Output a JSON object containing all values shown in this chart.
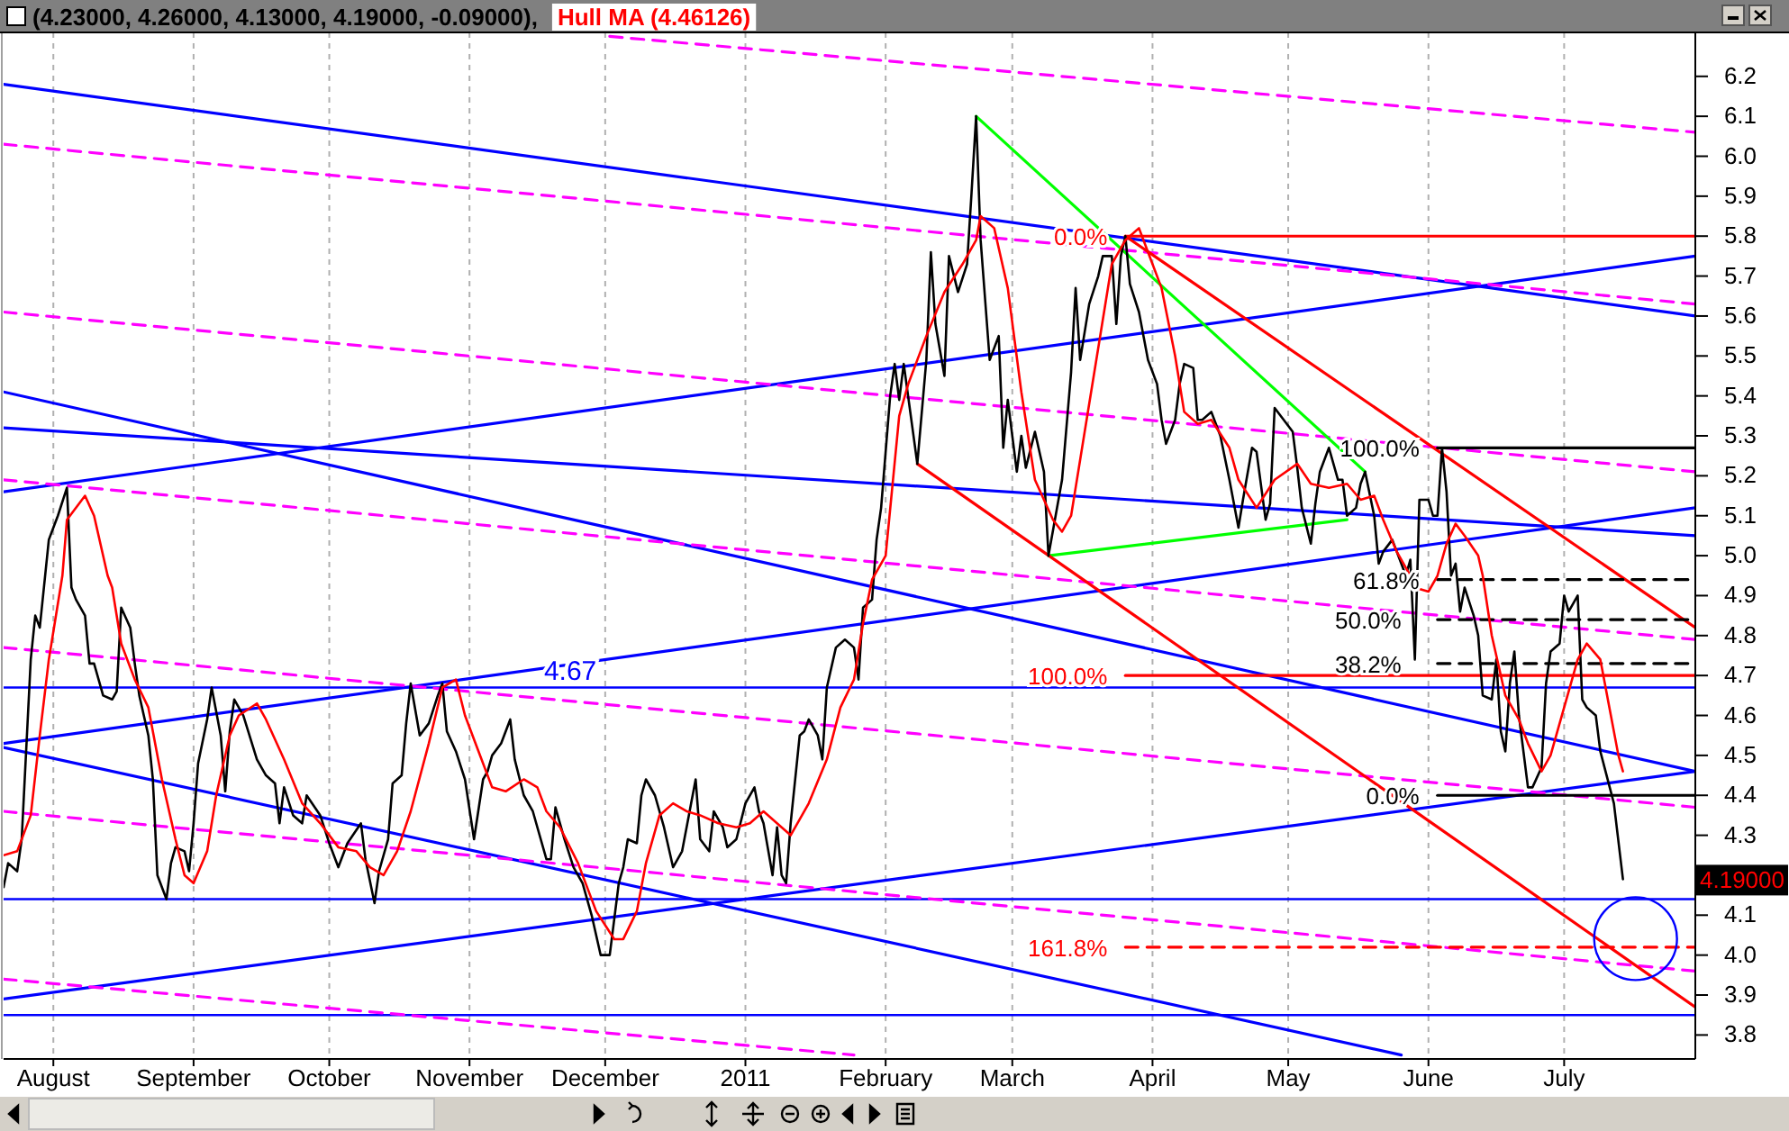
{
  "chart_data": {
    "type": "line",
    "title": "(4.23000, 4.26000, 4.13000, 4.19000, -0.09000),",
    "xlim": [
      "2010-07-21",
      "2011-07-30"
    ],
    "xticks": [
      {
        "value": "2010-08-01",
        "label": "August"
      },
      {
        "value": "2010-09-01",
        "label": "September"
      },
      {
        "value": "2010-10-01",
        "label": "October"
      },
      {
        "value": "2010-11-01",
        "label": "November"
      },
      {
        "value": "2010-12-01",
        "label": "December"
      },
      {
        "value": "2011-01-01",
        "label": "2011"
      },
      {
        "value": "2011-02-01",
        "label": "February"
      },
      {
        "value": "2011-03-01",
        "label": "March"
      },
      {
        "value": "2011-04-01",
        "label": "April"
      },
      {
        "value": "2011-05-01",
        "label": "May"
      },
      {
        "value": "2011-06-01",
        "label": "June"
      },
      {
        "value": "2011-07-01",
        "label": "July"
      }
    ],
    "ylim": [
      3.74,
      6.31
    ],
    "yticks": [
      3.8,
      3.9,
      {
        "value": 4,
        "label": "4.0"
      },
      4.1,
      {
        "value": 4.2,
        "label": null
      },
      4.3,
      4.4,
      4.5,
      4.6,
      4.7,
      4.8,
      4.9,
      {
        "value": 5,
        "label": "5.0"
      },
      5.1,
      5.2,
      5.3,
      5.4,
      5.5,
      5.6,
      5.7,
      5.8,
      5.9,
      {
        "value": 6,
        "label": "6.0"
      },
      6.1,
      6.2
    ],
    "grid": "x",
    "legend": "top left",
    "series": [
      {
        "color": "#0000ff",
        "x": [
          "2010-07-21",
          "2011-07-30"
        ],
        "values": [
          6.18,
          5.6
        ]
      },
      {
        "color": "#0000ff",
        "x": [
          "2010-07-21",
          "2011-07-30"
        ],
        "values": [
          5.16,
          5.75
        ]
      },
      {
        "color": "#0000ff",
        "x": [
          "2010-07-21",
          "2011-07-30"
        ],
        "values": [
          5.32,
          5.05
        ]
      },
      {
        "color": "#0000ff",
        "x": [
          "2010-07-21",
          "2011-07-30"
        ],
        "values": [
          5.41,
          4.46
        ]
      },
      {
        "color": "#0000ff",
        "x": [
          "2010-07-21",
          "2011-07-30"
        ],
        "values": [
          4.53,
          5.12
        ]
      },
      {
        "color": "#0000ff",
        "x": [
          "2010-07-21",
          "2011-05-26"
        ],
        "values": [
          4.52,
          3.75
        ]
      },
      {
        "color": "#0000ff",
        "x": [
          "2010-07-21",
          "2011-07-30"
        ],
        "values": [
          3.89,
          4.46
        ]
      },
      {
        "color": "#ff00ff",
        "line_style": "dashed",
        "x": [
          "2010-12-02",
          "2011-07-30"
        ],
        "values": [
          6.3,
          6.06
        ]
      },
      {
        "color": "#ff00ff",
        "line_style": "dashed",
        "x": [
          "2010-07-21",
          "2011-07-30"
        ],
        "values": [
          6.03,
          5.63
        ]
      },
      {
        "color": "#ff00ff",
        "line_style": "dashed",
        "x": [
          "2010-07-21",
          "2011-07-30"
        ],
        "values": [
          5.61,
          5.21
        ]
      },
      {
        "color": "#ff00ff",
        "line_style": "dashed",
        "x": [
          "2010-07-21",
          "2011-07-30"
        ],
        "values": [
          5.19,
          4.79
        ]
      },
      {
        "color": "#ff00ff",
        "line_style": "dashed",
        "x": [
          "2010-07-21",
          "2011-07-30"
        ],
        "values": [
          4.77,
          4.37
        ]
      },
      {
        "color": "#ff00ff",
        "line_style": "dashed",
        "x": [
          "2010-07-21",
          "2011-07-30"
        ],
        "values": [
          4.36,
          3.96
        ]
      },
      {
        "color": "#ff00ff",
        "line_style": "dashed",
        "x": [
          "2010-07-21",
          "2011-01-25"
        ],
        "values": [
          3.94,
          3.75
        ]
      },
      {
        "color": "#00ff00",
        "x": [
          "2011-02-21",
          "2011-05-18"
        ],
        "values": [
          6.1,
          5.21
        ]
      },
      {
        "color": "#00ff00",
        "x": [
          "2011-03-09",
          "2011-05-14"
        ],
        "values": [
          5.0,
          5.09
        ]
      },
      {
        "color": "#ff0000",
        "x": [
          "2011-03-26",
          "2011-07-30"
        ],
        "values": [
          5.8,
          4.82
        ]
      },
      {
        "color": "#ff0000",
        "x": [
          "2011-02-08",
          "2011-07-30"
        ],
        "values": [
          5.23,
          3.87
        ]
      },
      {
        "color": "#ff0000",
        "x": [
          "2011-03-26",
          "2011-07-30"
        ],
        "values": [
          5.8,
          5.8
        ]
      },
      {
        "color": "#ff0000",
        "x": [
          "2011-03-26",
          "2011-07-30"
        ],
        "values": [
          4.7,
          4.7
        ]
      },
      {
        "color": "#ff0000",
        "line_style": "dashed",
        "x": [
          "2011-03-26",
          "2011-07-30"
        ],
        "values": [
          4.02,
          4.02
        ]
      },
      {
        "color": "#000000",
        "x": [
          "2011-06-03",
          "2011-07-30"
        ],
        "values": [
          5.27,
          5.27
        ]
      },
      {
        "color": "#000000",
        "x": [
          "2011-06-03",
          "2011-07-30"
        ],
        "values": [
          4.4,
          4.4
        ]
      },
      {
        "color": "#000000",
        "line_style": "dashed",
        "x": [
          "2011-06-03",
          "2011-07-30"
        ],
        "values": [
          4.94,
          4.94
        ]
      },
      {
        "color": "#000000",
        "line_style": "dashed",
        "x": [
          "2011-06-03",
          "2011-07-30"
        ],
        "values": [
          4.84,
          4.84
        ]
      },
      {
        "color": "#000000",
        "line_style": "dashed",
        "x": [
          "2011-06-03",
          "2011-07-30"
        ],
        "values": [
          4.73,
          4.73
        ]
      },
      {
        "color": "#000000",
        "x": [
          "2010-07-21",
          "2010-07-22",
          "2010-07-24",
          "2010-07-25",
          "2010-07-27",
          "2010-07-28",
          "2010-07-29",
          "2010-07-31",
          "2010-08-01",
          "2010-08-02",
          "2010-08-04",
          "2010-08-05",
          "2010-08-06",
          "2010-08-08",
          "2010-08-09",
          "2010-08-10",
          "2010-08-12",
          "2010-08-14",
          "2010-08-15",
          "2010-08-16",
          "2010-08-18",
          "2010-08-19",
          "2010-08-20",
          "2010-08-22",
          "2010-08-23",
          "2010-08-24",
          "2010-08-26",
          "2010-08-27",
          "2010-08-28",
          "2010-08-30",
          "2010-08-31",
          "2010-09-01",
          "2010-09-02",
          "2010-09-04",
          "2010-09-05",
          "2010-09-07",
          "2010-09-08",
          "2010-09-09",
          "2010-09-10",
          "2010-09-12",
          "2010-09-15",
          "2010-09-17",
          "2010-09-19",
          "2010-09-20",
          "2010-09-21",
          "2010-09-23",
          "2010-09-25",
          "2010-09-26",
          "2010-09-29",
          "2010-10-01",
          "2010-10-03",
          "2010-10-05",
          "2010-10-08",
          "2010-10-09",
          "2010-10-11",
          "2010-10-12",
          "2010-10-14",
          "2010-10-15",
          "2010-10-17",
          "2010-10-18",
          "2010-10-19",
          "2010-10-21",
          "2010-10-23",
          "2010-10-25",
          "2010-10-26",
          "2010-10-27",
          "2010-10-29",
          "2010-10-31",
          "2010-11-02",
          "2010-11-04",
          "2010-11-05",
          "2010-11-06",
          "2010-11-08",
          "2010-11-10",
          "2010-11-11",
          "2010-11-13",
          "2010-11-15",
          "2010-11-18",
          "2010-11-19",
          "2010-11-20",
          "2010-11-22",
          "2010-11-24",
          "2010-11-26",
          "2010-11-28",
          "2010-11-30",
          "2010-12-02",
          "2010-12-04",
          "2010-12-05",
          "2010-12-06",
          "2010-12-08",
          "2010-12-09",
          "2010-12-10",
          "2010-12-12",
          "2010-12-14",
          "2010-12-16",
          "2010-12-18",
          "2010-12-20",
          "2010-12-21",
          "2010-12-22",
          "2010-12-24",
          "2010-12-25",
          "2010-12-27",
          "2010-12-28",
          "2010-12-30",
          "2011-01-01",
          "2011-01-03",
          "2011-01-04",
          "2011-01-05",
          "2011-01-07",
          "2011-01-08",
          "2011-01-09",
          "2011-01-10",
          "2011-01-11",
          "2011-01-13",
          "2011-01-14",
          "2011-01-15",
          "2011-01-17",
          "2011-01-18",
          "2011-01-19",
          "2011-01-21",
          "2011-01-23",
          "2011-01-25",
          "2011-01-26",
          "2011-01-27",
          "2011-01-29",
          "2011-01-30",
          "2011-01-31",
          "2011-02-02",
          "2011-02-03",
          "2011-02-04",
          "2011-02-05",
          "2011-02-08",
          "2011-02-10",
          "2011-02-11",
          "2011-02-12",
          "2011-02-14",
          "2011-02-15",
          "2011-02-17",
          "2011-02-19",
          "2011-02-20",
          "2011-02-21",
          "2011-02-22",
          "2011-02-24",
          "2011-02-26",
          "2011-02-27",
          "2011-02-28",
          "2011-03-02",
          "2011-03-03",
          "2011-03-04",
          "2011-03-06",
          "2011-03-08",
          "2011-03-09",
          "2011-03-12",
          "2011-03-14",
          "2011-03-15",
          "2011-03-16",
          "2011-03-18",
          "2011-03-20",
          "2011-03-21",
          "2011-03-23",
          "2011-03-24",
          "2011-03-25",
          "2011-03-26",
          "2011-03-27",
          "2011-03-29",
          "2011-03-31",
          "2011-04-02",
          "2011-04-03",
          "2011-04-04",
          "2011-04-06",
          "2011-04-07",
          "2011-04-08",
          "2011-04-10",
          "2011-04-11",
          "2011-04-12",
          "2011-04-14",
          "2011-04-16",
          "2011-04-18",
          "2011-04-20",
          "2011-04-21",
          "2011-04-23",
          "2011-04-24",
          "2011-04-26",
          "2011-04-27",
          "2011-04-28",
          "2011-04-30",
          "2011-05-02",
          "2011-05-03",
          "2011-05-04",
          "2011-05-06",
          "2011-05-07",
          "2011-05-08",
          "2011-05-10",
          "2011-05-12",
          "2011-05-13",
          "2011-05-14",
          "2011-05-16",
          "2011-05-17",
          "2011-05-18",
          "2011-05-20",
          "2011-05-21",
          "2011-05-22",
          "2011-05-24",
          "2011-05-27",
          "2011-05-28",
          "2011-05-29",
          "2011-05-30",
          "2011-06-01",
          "2011-06-02",
          "2011-06-03",
          "2011-06-04",
          "2011-06-05",
          "2011-06-06",
          "2011-06-07",
          "2011-06-08",
          "2011-06-09",
          "2011-06-11",
          "2011-06-12",
          "2011-06-13",
          "2011-06-15",
          "2011-06-16",
          "2011-06-17",
          "2011-06-18",
          "2011-06-19",
          "2011-06-20",
          "2011-06-21",
          "2011-06-23",
          "2011-06-24",
          "2011-06-26",
          "2011-06-27",
          "2011-06-28",
          "2011-06-30",
          "2011-07-01",
          "2011-07-02",
          "2011-07-04",
          "2011-07-05",
          "2011-07-06",
          "2011-07-08",
          "2011-07-09",
          "2011-07-12",
          "2011-07-14"
        ],
        "values": [
          4.17,
          4.23,
          4.21,
          4.29,
          4.74,
          4.85,
          4.82,
          5.04,
          5.07,
          5.1,
          5.17,
          4.92,
          4.89,
          4.85,
          4.73,
          4.73,
          4.65,
          4.64,
          4.66,
          4.87,
          4.82,
          4.73,
          4.65,
          4.55,
          4.44,
          4.2,
          4.14,
          4.23,
          4.27,
          4.26,
          4.21,
          4.33,
          4.48,
          4.59,
          4.67,
          4.55,
          4.41,
          4.56,
          4.64,
          4.6,
          4.49,
          4.45,
          4.43,
          4.33,
          4.42,
          4.35,
          4.33,
          4.4,
          4.35,
          4.28,
          4.22,
          4.28,
          4.33,
          4.24,
          4.13,
          4.21,
          4.29,
          4.43,
          4.45,
          4.58,
          4.68,
          4.55,
          4.58,
          4.65,
          4.68,
          4.56,
          4.51,
          4.44,
          4.29,
          4.44,
          4.46,
          4.5,
          4.53,
          4.59,
          4.49,
          4.4,
          4.36,
          4.24,
          4.24,
          4.37,
          4.29,
          4.22,
          4.18,
          4.1,
          4.0,
          4.0,
          4.18,
          4.22,
          4.29,
          4.28,
          4.4,
          4.44,
          4.4,
          4.32,
          4.22,
          4.26,
          4.38,
          4.44,
          4.29,
          4.26,
          4.36,
          4.32,
          4.27,
          4.29,
          4.38,
          4.42,
          4.36,
          4.33,
          4.2,
          4.32,
          4.2,
          4.18,
          4.33,
          4.55,
          4.56,
          4.59,
          4.55,
          4.49,
          4.67,
          4.77,
          4.79,
          4.77,
          4.69,
          4.87,
          4.89,
          5.04,
          5.12,
          5.4,
          5.48,
          5.39,
          5.48,
          5.23,
          5.49,
          5.76,
          5.58,
          5.45,
          5.75,
          5.66,
          5.73,
          5.91,
          6.1,
          5.79,
          5.49,
          5.55,
          5.27,
          5.39,
          5.21,
          5.3,
          5.22,
          5.31,
          5.21,
          5.0,
          5.19,
          5.46,
          5.67,
          5.49,
          5.63,
          5.7,
          5.75,
          5.75,
          5.58,
          5.75,
          5.8,
          5.68,
          5.61,
          5.49,
          5.43,
          5.34,
          5.28,
          5.34,
          5.43,
          5.48,
          5.47,
          5.34,
          5.34,
          5.36,
          5.3,
          5.19,
          5.07,
          5.14,
          5.27,
          5.26,
          5.09,
          5.13,
          5.37,
          5.34,
          5.31,
          5.22,
          5.12,
          5.03,
          5.13,
          5.21,
          5.27,
          5.19,
          5.19,
          5.1,
          5.12,
          5.18,
          5.21,
          5.1,
          4.98,
          5.01,
          5.04,
          4.95,
          4.99,
          4.74,
          5.14,
          5.14,
          5.1,
          5.1,
          5.27,
          5.16,
          4.95,
          4.98,
          4.86,
          4.92,
          4.85,
          4.8,
          4.65,
          4.64,
          4.74,
          4.56,
          4.51,
          4.68,
          4.76,
          4.6,
          4.42,
          4.42,
          4.47,
          4.68,
          4.76,
          4.78,
          4.9,
          4.86,
          4.9,
          4.64,
          4.62,
          4.6,
          4.51,
          4.38,
          4.19
        ]
      },
      {
        "name": "Hull MA (4.46126)",
        "color": "#ff0000",
        "x": [
          "2010-07-21",
          "2010-07-24",
          "2010-07-27",
          "2010-07-29",
          "2010-07-31",
          "2010-08-03",
          "2010-08-04",
          "2010-08-08",
          "2010-08-10",
          "2010-08-13",
          "2010-08-14",
          "2010-08-16",
          "2010-08-19",
          "2010-08-22",
          "2010-08-25",
          "2010-08-28",
          "2010-08-30",
          "2010-09-01",
          "2010-09-04",
          "2010-09-06",
          "2010-09-09",
          "2010-09-11",
          "2010-09-15",
          "2010-09-17",
          "2010-09-21",
          "2010-09-25",
          "2010-09-29",
          "2010-10-03",
          "2010-10-07",
          "2010-10-10",
          "2010-10-13",
          "2010-10-16",
          "2010-10-19",
          "2010-10-23",
          "2010-10-26",
          "2010-10-29",
          "2010-10-31",
          "2010-11-03",
          "2010-11-06",
          "2010-11-09",
          "2010-11-13",
          "2010-11-16",
          "2010-11-18",
          "2010-11-21",
          "2010-11-25",
          "2010-11-29",
          "2010-12-03",
          "2010-12-05",
          "2010-12-08",
          "2010-12-10",
          "2010-12-13",
          "2010-12-16",
          "2010-12-19",
          "2010-12-22",
          "2010-12-26",
          "2010-12-30",
          "2011-01-02",
          "2011-01-05",
          "2011-01-09",
          "2011-01-11",
          "2011-01-15",
          "2011-01-19",
          "2011-01-22",
          "2011-01-25",
          "2011-01-27",
          "2011-01-29",
          "2011-02-01",
          "2011-02-04",
          "2011-02-06",
          "2011-02-10",
          "2011-02-14",
          "2011-02-18",
          "2011-02-21",
          "2011-02-22",
          "2011-02-25",
          "2011-02-28",
          "2011-03-03",
          "2011-03-06",
          "2011-03-10",
          "2011-03-12",
          "2011-03-14",
          "2011-03-17",
          "2011-03-20",
          "2011-03-23",
          "2011-03-26",
          "2011-03-29",
          "2011-03-31",
          "2011-04-03",
          "2011-04-06",
          "2011-04-08",
          "2011-04-11",
          "2011-04-14",
          "2011-04-18",
          "2011-04-20",
          "2011-04-24",
          "2011-04-28",
          "2011-05-03",
          "2011-05-06",
          "2011-05-10",
          "2011-05-14",
          "2011-05-17",
          "2011-05-20",
          "2011-05-22",
          "2011-05-25",
          "2011-05-28",
          "2011-05-29",
          "2011-06-01",
          "2011-06-03",
          "2011-06-05",
          "2011-06-07",
          "2011-06-09",
          "2011-06-12",
          "2011-06-13",
          "2011-06-15",
          "2011-06-18",
          "2011-06-21",
          "2011-06-23",
          "2011-06-26",
          "2011-06-28",
          "2011-07-01",
          "2011-07-04",
          "2011-07-06",
          "2011-07-09",
          "2011-07-11",
          "2011-07-13",
          "2011-07-14"
        ],
        "values": [
          4.25,
          4.26,
          4.35,
          4.55,
          4.74,
          4.95,
          5.09,
          5.15,
          5.1,
          4.95,
          4.92,
          4.78,
          4.69,
          4.62,
          4.44,
          4.29,
          4.2,
          4.18,
          4.26,
          4.4,
          4.55,
          4.6,
          4.63,
          4.59,
          4.49,
          4.38,
          4.33,
          4.27,
          4.26,
          4.22,
          4.2,
          4.26,
          4.36,
          4.53,
          4.67,
          4.69,
          4.6,
          4.51,
          4.42,
          4.41,
          4.44,
          4.42,
          4.36,
          4.32,
          4.23,
          4.11,
          4.04,
          4.04,
          4.11,
          4.23,
          4.35,
          4.38,
          4.36,
          4.35,
          4.33,
          4.32,
          4.33,
          4.36,
          4.32,
          4.3,
          4.38,
          4.49,
          4.62,
          4.69,
          4.83,
          4.94,
          5.0,
          5.35,
          5.43,
          5.55,
          5.66,
          5.73,
          5.79,
          5.85,
          5.82,
          5.67,
          5.41,
          5.19,
          5.09,
          5.06,
          5.1,
          5.31,
          5.52,
          5.73,
          5.79,
          5.82,
          5.76,
          5.67,
          5.5,
          5.36,
          5.33,
          5.34,
          5.27,
          5.19,
          5.12,
          5.19,
          5.23,
          5.18,
          5.17,
          5.18,
          5.14,
          5.15,
          5.09,
          5.01,
          4.95,
          4.92,
          4.91,
          4.95,
          5.03,
          5.08,
          5.05,
          5.0,
          4.95,
          4.8,
          4.65,
          4.59,
          4.53,
          4.46,
          4.5,
          4.62,
          4.74,
          4.78,
          4.74,
          4.62,
          4.5,
          4.46
        ]
      }
    ],
    "ref_lines": [
      {
        "axis": "y",
        "value": 4.67,
        "label": "4.67",
        "color": "#0000ff"
      },
      {
        "axis": "y",
        "value": 4.14,
        "color": "#0000ff"
      },
      {
        "axis": "y",
        "value": 3.85,
        "color": "#0000ff"
      }
    ],
    "annotations": [
      {
        "text": "0.0%",
        "x": "2011-03-26",
        "y": 5.8
      },
      {
        "text": "100.0%",
        "x": "2011-03-26",
        "y": 4.7
      },
      {
        "text": "161.8%",
        "x": "2011-03-26",
        "y": 4.02
      },
      {
        "text": "100.0%",
        "x": "2011-06-03",
        "y": 5.27
      },
      {
        "text": "61.8%",
        "x": "2011-06-03",
        "y": 4.94
      },
      {
        "text": "50.0%",
        "x": "2011-06-03",
        "y": 4.84
      },
      {
        "text": "38.2%",
        "x": "2011-06-03",
        "y": 4.73
      },
      {
        "text": "0.0%",
        "x": "2011-06-03",
        "y": 4.4
      },
      "4.19000"
    ]
  }
}
